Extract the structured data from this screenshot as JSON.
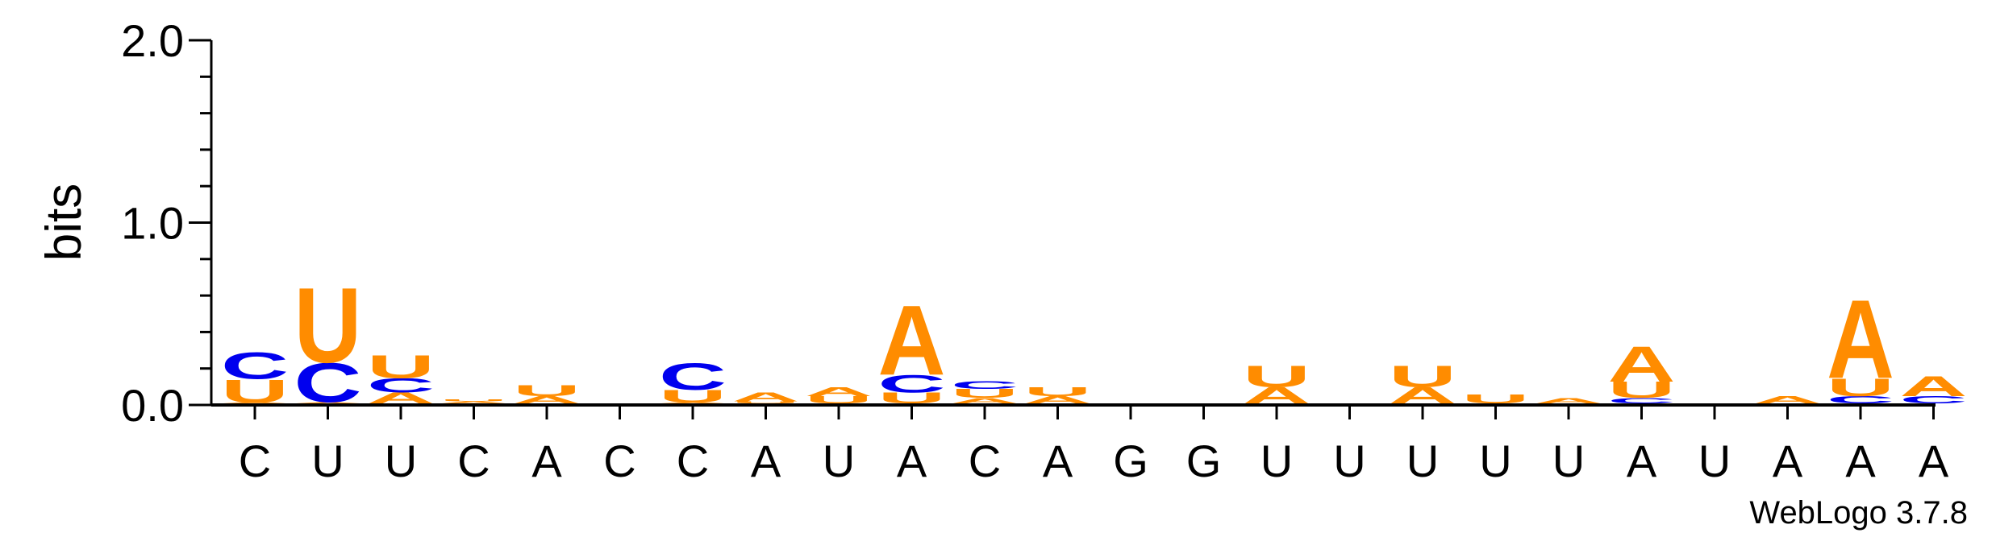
{
  "chart_data": {
    "type": "sequence-logo",
    "ylabel": "bits",
    "ylim": [
      0.0,
      2.0
    ],
    "yticks": [
      "0.0",
      "1.0",
      "2.0"
    ],
    "ytick_values": [
      0.0,
      1.0,
      2.0
    ],
    "categories": [
      "C",
      "U",
      "U",
      "C",
      "A",
      "C",
      "C",
      "A",
      "U",
      "A",
      "C",
      "A",
      "G",
      "G",
      "U",
      "U",
      "U",
      "U",
      "U",
      "A",
      "U",
      "A",
      "A",
      "A"
    ],
    "colors": {
      "A": "#ff8c00",
      "U": "#ff8c00",
      "C": "#0000ee",
      "G": "#0000ee"
    },
    "stacks": [
      [
        [
          "A",
          0.005
        ],
        [
          "U",
          0.13
        ],
        [
          "C",
          0.15
        ]
      ],
      [
        [
          "A",
          0.006
        ],
        [
          "C",
          0.22
        ],
        [
          "U",
          0.42
        ]
      ],
      [
        [
          "A",
          0.06
        ],
        [
          "C",
          0.08
        ],
        [
          "U",
          0.13
        ]
      ],
      [
        [
          "A",
          0.01
        ],
        [
          "U",
          0.01
        ]
      ],
      [
        [
          "A",
          0.04
        ],
        [
          "U",
          0.06
        ]
      ],
      [],
      [
        [
          "A",
          0.005
        ],
        [
          "U",
          0.07
        ],
        [
          "C",
          0.15
        ]
      ],
      [
        [
          "U",
          0.01
        ],
        [
          "A",
          0.05
        ]
      ],
      [
        [
          "U",
          0.04
        ],
        [
          "A",
          0.05
        ]
      ],
      [
        [
          "U",
          0.06
        ],
        [
          "C",
          0.1
        ],
        [
          "A",
          0.39
        ]
      ],
      [
        [
          "A",
          0.03
        ],
        [
          "U",
          0.05
        ],
        [
          "C",
          0.045
        ]
      ],
      [
        [
          "A",
          0.04
        ],
        [
          "U",
          0.05
        ]
      ],
      [],
      [],
      [
        [
          "A",
          0.09
        ],
        [
          "U",
          0.12
        ]
      ],
      [],
      [
        [
          "A",
          0.09
        ],
        [
          "U",
          0.12
        ]
      ],
      [
        [
          "U",
          0.05
        ]
      ],
      [
        [
          "A",
          0.03
        ]
      ],
      [
        [
          "C",
          0.03
        ],
        [
          "U",
          0.09
        ],
        [
          "A",
          0.2
        ]
      ],
      [],
      [
        [
          "A",
          0.04
        ]
      ],
      [
        [
          "C",
          0.04
        ],
        [
          "U",
          0.1
        ],
        [
          "A",
          0.44
        ]
      ],
      [
        [
          "C",
          0.04
        ],
        [
          "A",
          0.11
        ]
      ]
    ],
    "credit": "WebLogo 3.7.8"
  }
}
